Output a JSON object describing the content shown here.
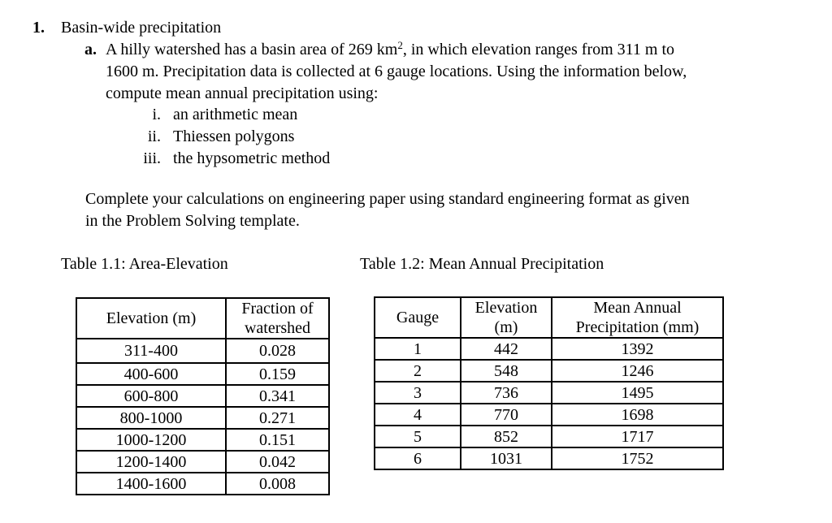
{
  "colors": {
    "text": "#000000",
    "background": "#ffffff",
    "table_border": "#000000"
  },
  "document": {
    "heading": {
      "number": "1.",
      "title": "Basin-wide precipitation"
    },
    "item_a": {
      "label": "a.",
      "line1_part1": "A hilly watershed has a basin area of 269 km",
      "line1_sup": "2",
      "line1_part2": ", in which elevation ranges from 311 m to",
      "line2": "1600 m. Precipitation data is collected at 6 gauge locations. Using the information below,",
      "line3": "compute mean annual precipitation using:"
    },
    "roman_list": [
      {
        "num": "i.",
        "text": "an arithmetic mean"
      },
      {
        "num": "ii.",
        "text": "Thiessen polygons"
      },
      {
        "num": "iii.",
        "text": "the hypsometric method"
      }
    ],
    "note": {
      "line1": "Complete your calculations on engineering paper using standard engineering format as given",
      "line2": "in the Problem Solving template."
    },
    "table1": {
      "caption": "Table 1.1: Area-Elevation",
      "col1_header": "Elevation (m)",
      "col2_header_line1": "Fraction of",
      "col2_header_line2": "watershed",
      "rows": [
        {
          "range": "311-400",
          "fraction": "0.028"
        },
        {
          "range": "400-600",
          "fraction": "0.159"
        },
        {
          "range": "600-800",
          "fraction": "0.341"
        },
        {
          "range": "800-1000",
          "fraction": "0.271"
        },
        {
          "range": "1000-1200",
          "fraction": "0.151"
        },
        {
          "range": "1200-1400",
          "fraction": "0.042"
        },
        {
          "range": "1400-1600",
          "fraction": "0.008"
        }
      ]
    },
    "table2": {
      "caption": "Table 1.2: Mean Annual Precipitation",
      "col1_header": "Gauge",
      "col2_header_line1": "Elevation",
      "col2_header_line2": "(m)",
      "col3_header_line1": "Mean Annual",
      "col3_header_line2": "Precipitation (mm)",
      "rows": [
        {
          "gauge": "1",
          "elevation": "442",
          "precip": "1392"
        },
        {
          "gauge": "2",
          "elevation": "548",
          "precip": "1246"
        },
        {
          "gauge": "3",
          "elevation": "736",
          "precip": "1495"
        },
        {
          "gauge": "4",
          "elevation": "770",
          "precip": "1698"
        },
        {
          "gauge": "5",
          "elevation": "852",
          "precip": "1717"
        },
        {
          "gauge": "6",
          "elevation": "1031",
          "precip": "1752"
        }
      ]
    }
  }
}
